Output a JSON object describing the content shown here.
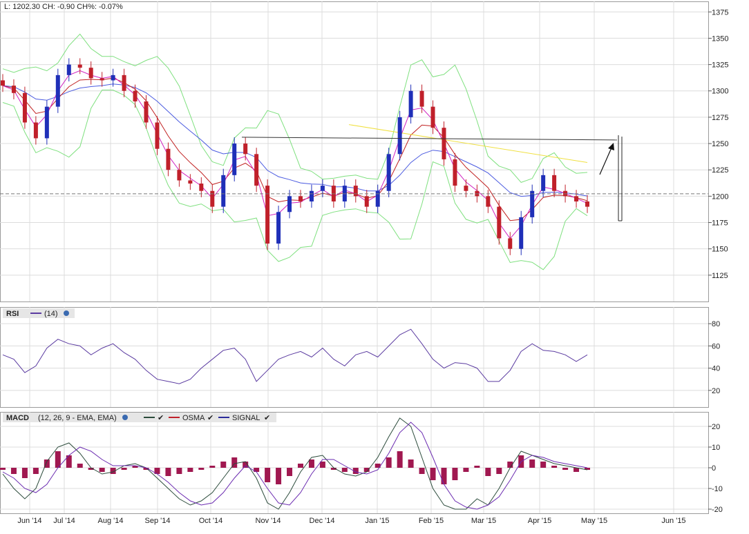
{
  "header": {
    "quote": "L: 1202.30 CH: -0.90 CH%: -0.07%"
  },
  "rsi_panel": {
    "label": "RSI",
    "params": "(14)"
  },
  "macd_panel": {
    "label": "MACD",
    "params": "(12, 26, 9 - EMA, EMA)",
    "legend_osma": "OSMA",
    "legend_signal": "SIGNAL"
  },
  "colors": {
    "up": "#1f2fb8",
    "down": "#c0202a",
    "ema_fast": "#d020c0",
    "ema_mid": "#c02020",
    "ema_slow": "#4a5ae0",
    "band": "#7ee07e",
    "sma_long": "#f0e040",
    "rsi_line": "#5a3aa0",
    "macd_line": "#2a4a3a",
    "signal_line": "#6a2ab0",
    "osma_bar": "#a01850"
  },
  "chart_data": [
    {
      "type": "candlestick",
      "panel": "price",
      "x_tick_labels": [
        "Jun '14",
        "Jul '14",
        "Aug '14",
        "Sep '14",
        "Oct '14",
        "Nov '14",
        "Dec '14",
        "Jan '15",
        "Feb '15",
        "Mar '15",
        "Apr '15",
        "May '15",
        "Jun '15"
      ],
      "y_ticks": [
        1125,
        1150,
        1175,
        1200,
        1225,
        1250,
        1275,
        1300,
        1325,
        1350,
        1375
      ],
      "ylim": [
        1100,
        1385
      ],
      "last_price": 1202.3,
      "weekly_close": [
        1305,
        1298,
        1270,
        1255,
        1285,
        1315,
        1325,
        1322,
        1312,
        1310,
        1315,
        1300,
        1290,
        1270,
        1245,
        1225,
        1215,
        1212,
        1205,
        1190,
        1220,
        1250,
        1240,
        1210,
        1155,
        1185,
        1200,
        1195,
        1205,
        1210,
        1195,
        1210,
        1200,
        1190,
        1205,
        1240,
        1275,
        1300,
        1285,
        1265,
        1235,
        1210,
        1205,
        1200,
        1190,
        1160,
        1150,
        1180,
        1205,
        1220,
        1205,
        1200,
        1195,
        1190
      ],
      "resistance_line": 1256,
      "long_ma_start": 1268,
      "long_ma_end": 1232
    },
    {
      "type": "line",
      "panel": "rsi",
      "y_ticks": [
        20,
        40,
        60,
        80
      ],
      "ylim": [
        5,
        95
      ],
      "values": [
        52,
        48,
        36,
        42,
        58,
        66,
        62,
        60,
        52,
        58,
        62,
        54,
        48,
        38,
        30,
        28,
        26,
        30,
        40,
        48,
        56,
        58,
        48,
        28,
        38,
        48,
        52,
        55,
        50,
        58,
        48,
        42,
        52,
        55,
        50,
        60,
        70,
        75,
        62,
        48,
        40,
        45,
        44,
        40,
        28,
        28,
        38,
        55,
        62,
        56,
        55,
        52,
        46,
        52
      ]
    },
    {
      "type": "bar+line",
      "panel": "macd",
      "y_ticks": [
        -20,
        -10,
        0,
        10,
        20
      ],
      "ylim": [
        -22,
        27
      ],
      "series": [
        {
          "name": "OSMA",
          "values": [
            -1,
            -3,
            -5,
            -3,
            4,
            8,
            6,
            2,
            -1,
            -2,
            -3,
            -1,
            1,
            -1,
            -3,
            -4,
            -3,
            -2,
            -1,
            1,
            3,
            5,
            3,
            -2,
            -7,
            -8,
            -4,
            2,
            4,
            3,
            -1,
            -2,
            -3,
            -2,
            2,
            5,
            8,
            4,
            -3,
            -6,
            -8,
            -6,
            -2,
            1,
            -4,
            -3,
            3,
            6,
            4,
            3,
            1,
            -1,
            -2,
            -1
          ]
        }
      ],
      "macd_line": [
        -3,
        -10,
        -15,
        -10,
        3,
        10,
        12,
        7,
        0,
        -3,
        -2,
        1,
        2,
        0,
        -5,
        -10,
        -15,
        -18,
        -16,
        -12,
        -5,
        2,
        3,
        -5,
        -17,
        -20,
        -12,
        -2,
        5,
        6,
        0,
        -3,
        -4,
        -2,
        5,
        15,
        24,
        20,
        5,
        -10,
        -18,
        -20,
        -20,
        -15,
        -18,
        -10,
        0,
        8,
        6,
        4,
        2,
        1,
        0,
        -1
      ],
      "signal_line": [
        -2,
        -5,
        -10,
        -12,
        -8,
        0,
        6,
        10,
        8,
        4,
        1,
        1,
        1,
        0,
        -3,
        -7,
        -12,
        -16,
        -18,
        -17,
        -12,
        -5,
        1,
        -2,
        -10,
        -17,
        -18,
        -12,
        -3,
        4,
        4,
        1,
        -2,
        -3,
        -1,
        7,
        17,
        22,
        17,
        5,
        -8,
        -16,
        -19,
        -20,
        -18,
        -14,
        -6,
        3,
        6,
        5,
        3,
        2,
        1,
        0
      ]
    }
  ]
}
